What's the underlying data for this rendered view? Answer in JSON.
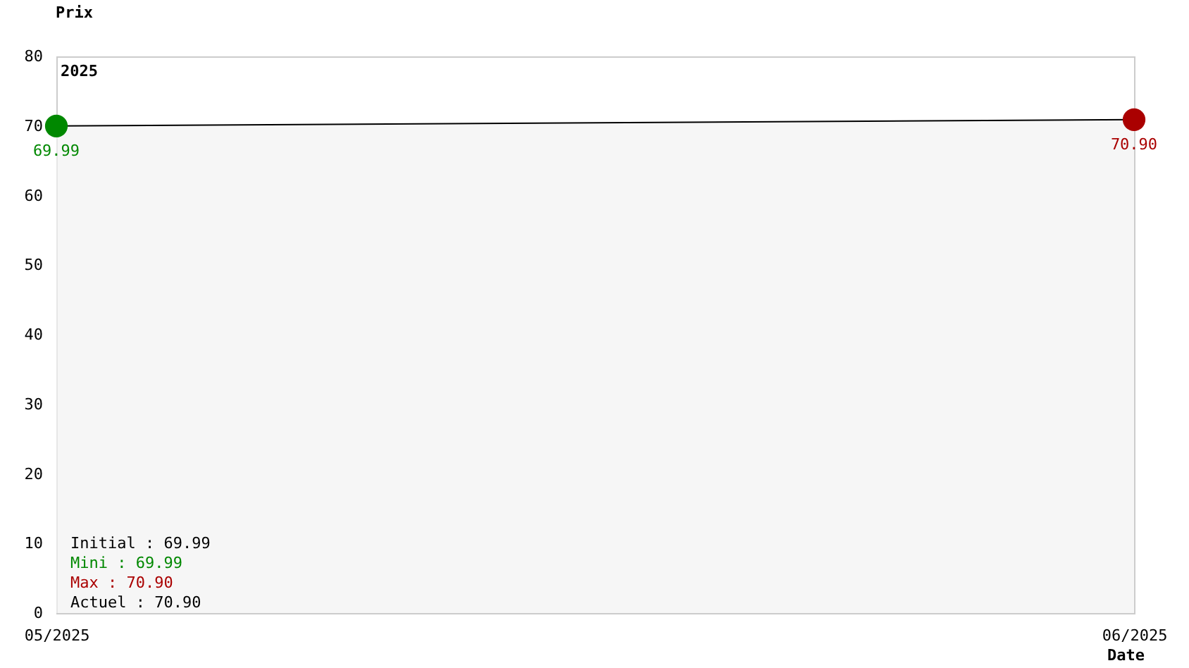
{
  "chart_data": {
    "type": "area",
    "xlabel": "Date",
    "ylabel": "Prix",
    "categories": [
      "05/2025",
      "06/2025"
    ],
    "series": [
      {
        "color": "#000000",
        "values": [
          69.99,
          70.9
        ],
        "value_labels": [
          "69.99",
          "70.90"
        ]
      }
    ],
    "colors": [
      "#008800",
      "#aa0000"
    ],
    "ylim": [
      0,
      80
    ],
    "yticks": [
      0,
      10,
      20,
      30,
      40,
      50,
      60,
      70,
      80
    ],
    "marker": "circle",
    "annotations": [
      "2025",
      "Initial : 69.99",
      "Mini : 69.99",
      "Max : 70.90",
      "Actuel : 70.90"
    ]
  }
}
